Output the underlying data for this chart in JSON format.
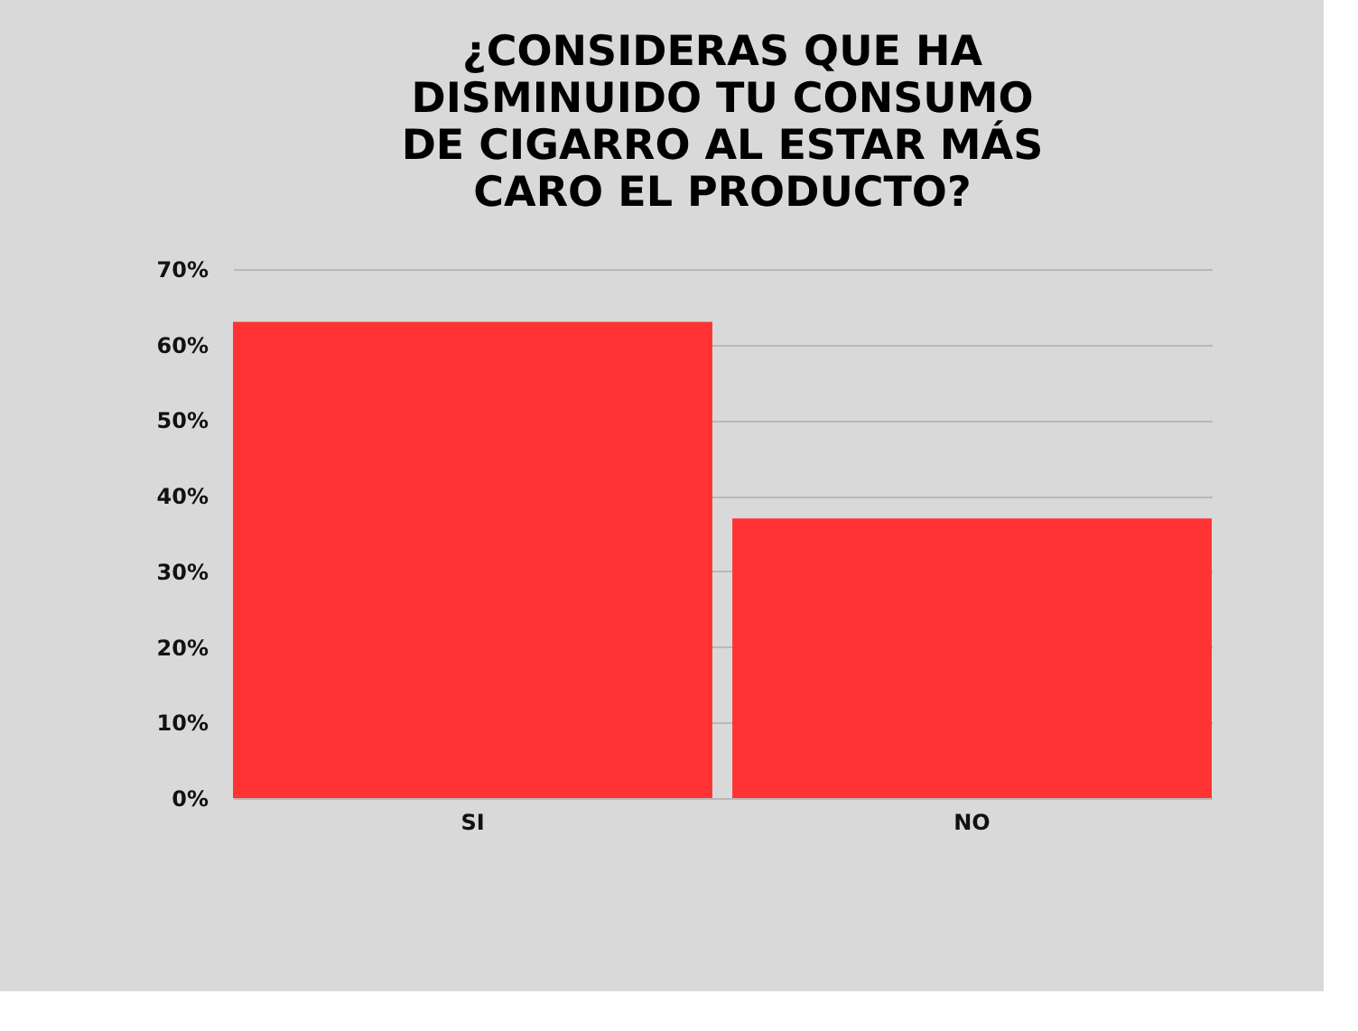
{
  "chart_data": {
    "type": "bar",
    "title": "¿CONSIDERAS QUE HA\nDISMINUIDO TU CONSUMO\nDE CIGARRO AL ESTAR MÁS\nCARO EL PRODUCTO?",
    "categories": [
      "SI",
      "NO"
    ],
    "values": [
      63,
      37
    ],
    "color": "#ff3333",
    "ylim": [
      0,
      70
    ],
    "yticks": [
      {
        "value": 0,
        "label": "0%"
      },
      {
        "value": 10,
        "label": "10%"
      },
      {
        "value": 20,
        "label": "20%"
      },
      {
        "value": 30,
        "label": "30%"
      },
      {
        "value": 40,
        "label": "40%"
      },
      {
        "value": 50,
        "label": "50%"
      },
      {
        "value": 60,
        "label": "60%"
      },
      {
        "value": 70,
        "label": "70%"
      }
    ],
    "grid": "y"
  }
}
